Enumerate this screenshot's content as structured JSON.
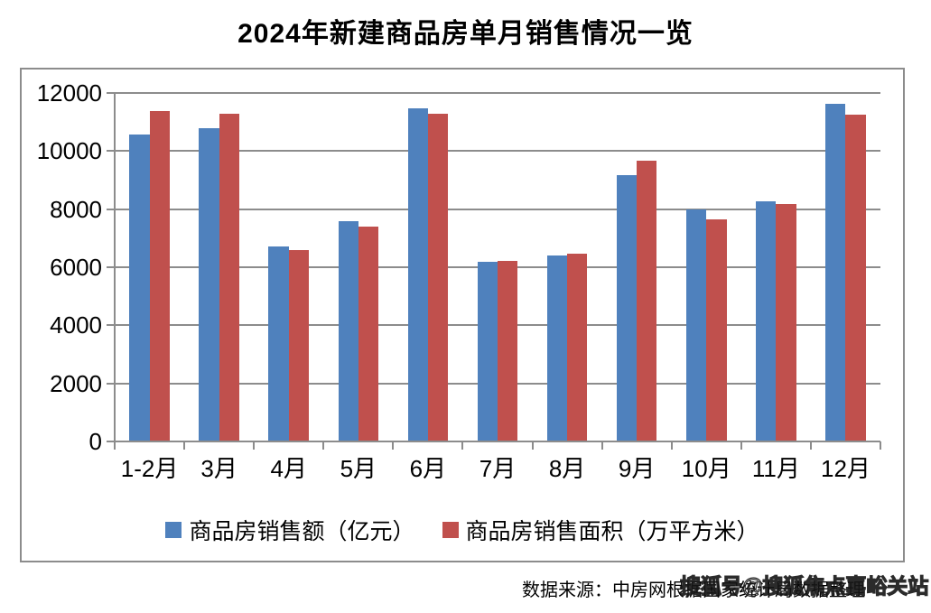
{
  "title": "2024年新建商品房单月销售情况一览",
  "chart_data": {
    "type": "bar",
    "title": "2024年新建商品房单月销售情况一览",
    "categories": [
      "1-2月",
      "3月",
      "4月",
      "5月",
      "6月",
      "7月",
      "8月",
      "9月",
      "10月",
      "11月",
      "12月"
    ],
    "series": [
      {
        "name": "商品房销售额（亿元）",
        "color": "#4F81BD",
        "values": [
          10566,
          10789,
          6712,
          7598,
          11468,
          6197,
          6393,
          9157,
          7975,
          8270,
          11625
        ]
      },
      {
        "name": "商品房销售面积（万平方米）",
        "color": "#C0504D",
        "values": [
          11369,
          11299,
          6584,
          7390,
          11274,
          6233,
          6453,
          9682,
          7646,
          8188,
          11267
        ]
      }
    ],
    "ylim": [
      0,
      12000
    ],
    "ytick_step": 2000,
    "yticks": [
      "0",
      "2000",
      "4000",
      "6000",
      "8000",
      "10000",
      "12000"
    ],
    "grid": true,
    "gridline_color": "#8C8C8C",
    "legend_position": "bottom"
  },
  "footer": {
    "source": "数据来源：中房网根据国家统计局数据整理",
    "watermark": "搜狐号@搜狐焦点嘉峪关站"
  }
}
